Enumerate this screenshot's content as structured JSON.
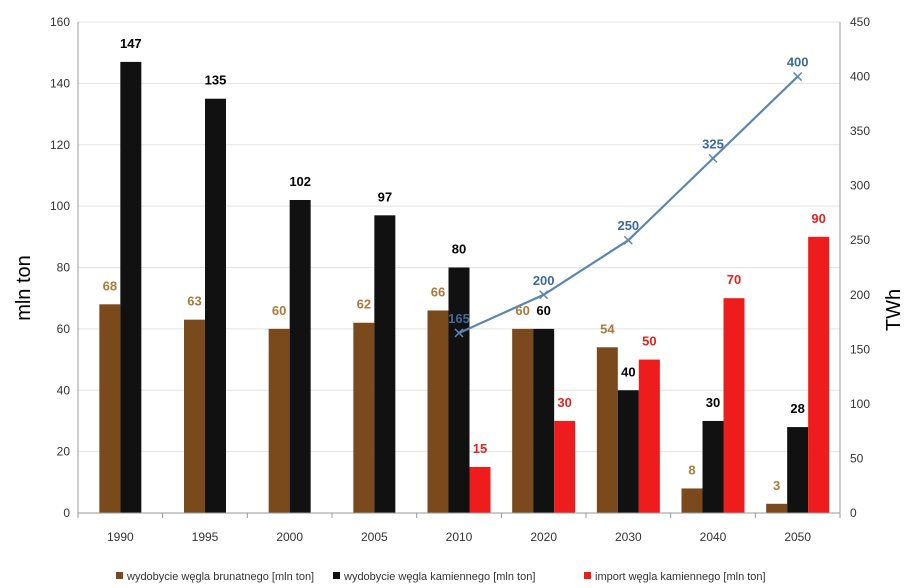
{
  "chart_data": {
    "type": "bar",
    "categories": [
      "1990",
      "1995",
      "2000",
      "2005",
      "2010",
      "2020",
      "2030",
      "2040",
      "2050"
    ],
    "series": [
      {
        "name": "wydobycie węgla brunatnego [mln ton]",
        "kind": "bar",
        "axis": "left",
        "color": "#7a4a1c",
        "label_color": "#a87a3c",
        "values": [
          68,
          63,
          60,
          62,
          66,
          60,
          54,
          8,
          3
        ],
        "labels": [
          "68",
          "63",
          "60",
          "62",
          "66",
          "60",
          "54",
          "8",
          "3"
        ]
      },
      {
        "name": "wydobycie węgla kamiennego [mln ton]",
        "kind": "bar",
        "axis": "left",
        "color": "#111111",
        "label_color": "#000000",
        "values": [
          147,
          135,
          102,
          97,
          80,
          60,
          40,
          30,
          28
        ],
        "labels": [
          "147",
          "135",
          "102",
          "97",
          "80",
          "60",
          "40",
          "30",
          "28"
        ]
      },
      {
        "name": "import węgla kamiennego [mln ton]",
        "kind": "bar",
        "axis": "left",
        "color": "#ee1c1c",
        "label_color": "#e0241f",
        "values": [
          null,
          null,
          null,
          null,
          15,
          30,
          50,
          70,
          90
        ],
        "labels": [
          "",
          "",
          "",
          "",
          "15",
          "30",
          "50",
          "70",
          "90"
        ]
      },
      {
        "name": "",
        "kind": "line",
        "axis": "right",
        "color": "#5b86b3",
        "label_color": "#3e6a99",
        "values": [
          null,
          null,
          null,
          null,
          165,
          200,
          250,
          325,
          400
        ],
        "labels": [
          "",
          "",
          "",
          "",
          "165",
          "200",
          "250",
          "325",
          "400"
        ]
      }
    ],
    "ylabel": "mln ton",
    "y2label": "TWh",
    "ylim": [
      0,
      160
    ],
    "y2lim": [
      0,
      450
    ],
    "yticks": [
      "0",
      "20",
      "40",
      "60",
      "80",
      "100",
      "120",
      "140",
      "160"
    ],
    "y2ticks": [
      "0",
      "50",
      "100",
      "150",
      "200",
      "250",
      "300",
      "350",
      "400",
      "450"
    ],
    "grid": true,
    "legend_position": "bottom",
    "legend": [
      "wydobycie węgla brunatnego [mln ton]",
      "wydobycie węgla kamiennego [mln ton]",
      "import węgla kamiennego [mln ton]"
    ]
  }
}
